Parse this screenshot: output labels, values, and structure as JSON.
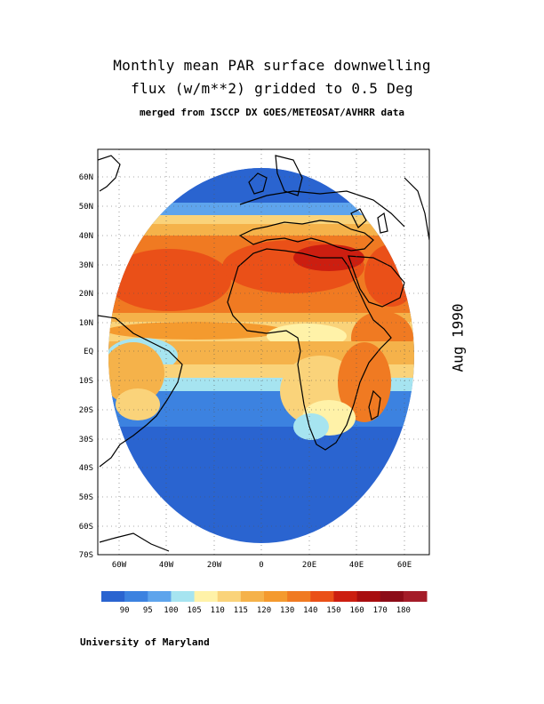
{
  "title": {
    "line1": "Monthly mean PAR surface downwelling",
    "line2": "flux (w/m**2) gridded to 0.5 Deg",
    "line3": "merged from ISCCP DX GOES/METEOSAT/AVHRR data"
  },
  "date_label": "Aug 1990",
  "credit": "University of Maryland",
  "map": {
    "projection": "cylindrical, 70S-70N, 70W-70E",
    "lat_ticks": [
      "60N",
      "50N",
      "40N",
      "30N",
      "20N",
      "10N",
      "EQ",
      "10S",
      "20S",
      "30S",
      "40S",
      "50S",
      "60S",
      "70S"
    ],
    "lon_ticks": [
      "60W",
      "40W",
      "20W",
      "0",
      "20E",
      "40E",
      "60E"
    ],
    "data_disk": "satellite coverage ellipse; land outlines of Africa, Europe, Middle East, South America"
  },
  "legend": {
    "labels": [
      "90",
      "95",
      "100",
      "105",
      "110",
      "115",
      "120",
      "130",
      "140",
      "150",
      "160",
      "170",
      "180"
    ],
    "colors": [
      "#2a64d0",
      "#3c82e0",
      "#5ea4ec",
      "#a6e4f0",
      "#fff2a8",
      "#fad37a",
      "#f5b24a",
      "#f49a2e",
      "#f07a22",
      "#ea5018",
      "#cc1e10",
      "#a80e10",
      "#8c0c18",
      "#a41c28"
    ]
  },
  "colors": {
    "low": "#2a64d0",
    "high": "#e14818",
    "land_outline": "#000000"
  }
}
